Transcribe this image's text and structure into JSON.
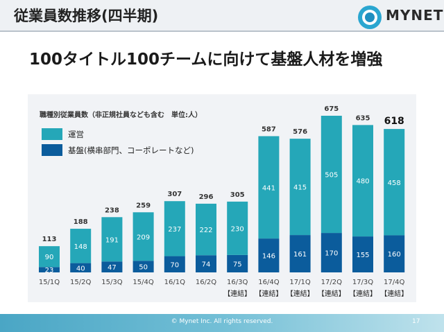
{
  "header": {
    "title": "従業員数推移(四半期)",
    "logo_text": "MYNET"
  },
  "headline": "100タイトル100チームに向けて基盤人材を増強",
  "colors": {
    "operations": "#25a7b8",
    "base": "#0b5c9c"
  },
  "chart_data": {
    "type": "bar",
    "stacked": true,
    "subtitle": "職種別従業員数（非正規社員なども含む　単位:人）",
    "categories": [
      "15/1Q",
      "15/2Q",
      "15/3Q",
      "15/4Q",
      "16/1Q",
      "16/2Q",
      "16/3Q",
      "16/4Q",
      "17/1Q",
      "17/2Q",
      "17/3Q",
      "17/4Q"
    ],
    "category_notes": [
      "",
      "",
      "",
      "",
      "",
      "",
      "【連結】",
      "【連結】",
      "【連結】",
      "【連結】",
      "【連結】",
      "【連結】"
    ],
    "series": [
      {
        "name": "基盤(横串部門、コーポレートなど)",
        "values": [
          23,
          40,
          47,
          50,
          70,
          74,
          75,
          146,
          161,
          170,
          155,
          160
        ]
      },
      {
        "name": "運営",
        "values": [
          90,
          148,
          191,
          209,
          237,
          222,
          230,
          441,
          415,
          505,
          480,
          458
        ]
      }
    ],
    "totals": [
      113,
      188,
      238,
      259,
      307,
      296,
      305,
      587,
      576,
      675,
      635,
      618
    ],
    "legend_position": "top-left",
    "ylim": [
      0,
      675
    ]
  },
  "footer": {
    "copyright": "© Mynet Inc. All rights reserved.",
    "page": "17"
  }
}
